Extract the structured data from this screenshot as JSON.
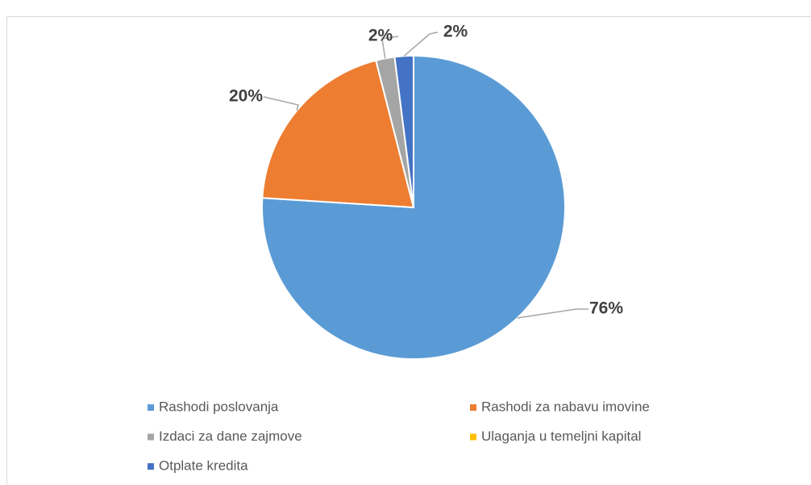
{
  "chart_data": {
    "type": "pie",
    "categories": [
      "Rashodi poslovanja",
      "Rashodi za nabavu imovine",
      "Izdaci za dane zajmove",
      "Ulaganja u temeljni kapital",
      "Otplate kredita"
    ],
    "values": [
      76,
      20,
      2,
      0,
      2
    ],
    "value_labels": [
      "76%",
      "20%",
      "2%",
      null,
      "2%"
    ],
    "colors": [
      "#5b9bd5",
      "#ed7d31",
      "#a5a5a5",
      "#ffc000",
      "#4472c4"
    ],
    "legend": "bottom"
  }
}
